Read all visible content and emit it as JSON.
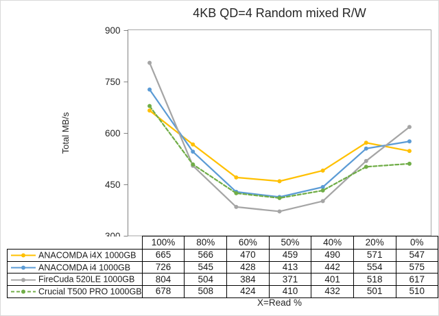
{
  "chart_data": {
    "type": "line",
    "title": "4KB QD=4 Random mixed R/W",
    "ylabel": "Total MB/s",
    "xlabel": "X=Read %",
    "categories": [
      "100%",
      "80%",
      "60%",
      "50%",
      "40%",
      "20%",
      "0%"
    ],
    "series": [
      {
        "name": "ANACOMDA i4X 1000GB",
        "color": "#FFC000",
        "dash": "solid",
        "values": [
          665,
          566,
          470,
          459,
          490,
          571,
          547
        ]
      },
      {
        "name": "ANACOMDA i4 1000GB",
        "color": "#5B9BD5",
        "dash": "solid",
        "values": [
          726,
          545,
          428,
          413,
          442,
          554,
          575
        ]
      },
      {
        "name": "FireCuda 520LE 1000GB",
        "color": "#A5A5A5",
        "dash": "solid",
        "values": [
          804,
          504,
          384,
          371,
          401,
          518,
          617
        ]
      },
      {
        "name": "Crucial T500 PRO 1000GB",
        "color": "#70AD47",
        "dash": "dashed",
        "values": [
          678,
          508,
          424,
          410,
          432,
          501,
          510
        ]
      }
    ],
    "ylim": [
      300,
      900
    ],
    "yticks": [
      300,
      450,
      600,
      750,
      900
    ],
    "grid": false,
    "legend_position": "table-left",
    "axis_color": "#808080",
    "frame_color": "#a6a6a6",
    "table_border_color": "#000000"
  }
}
